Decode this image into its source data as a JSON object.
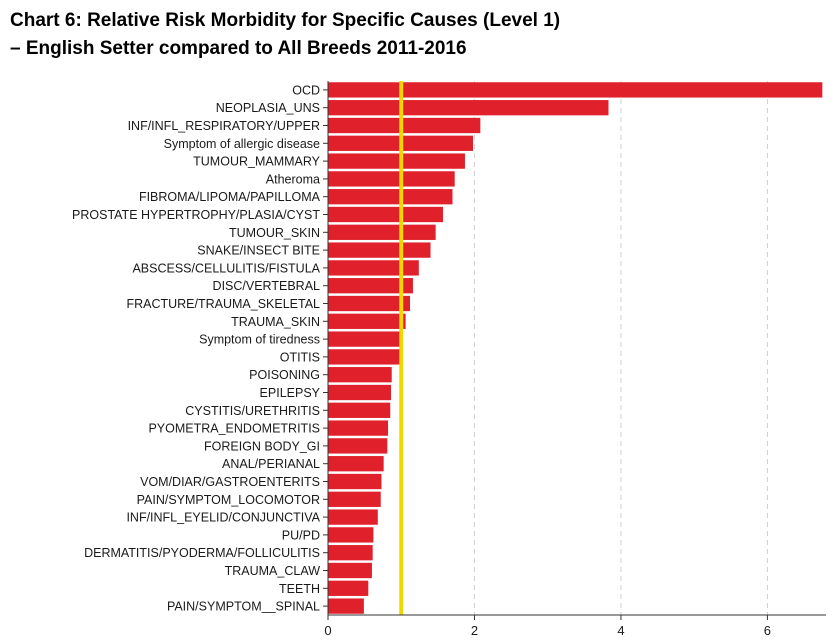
{
  "chart_data": {
    "type": "bar",
    "orientation": "horizontal",
    "title": "Chart 6: Relative Risk Morbidity for Specific Causes (Level 1)",
    "subtitle": "–  English Setter compared to All Breeds 2011-2016",
    "xlabel": "",
    "ylabel": "",
    "xlim": [
      0,
      6.8
    ],
    "xticks": [
      0,
      2,
      4,
      6
    ],
    "grid": "vertical dashed",
    "reference_line": 1,
    "categories": [
      "OCD",
      "NEOPLASIA_UNS",
      "INF/INFL_RESPIRATORY/UPPER",
      "Symptom of allergic disease",
      "TUMOUR_MAMMARY",
      "Atheroma",
      "FIBROMA/LIPOMA/PAPILLOMA",
      "PROSTATE HYPERTROPHY/PLASIA/CYST",
      "TUMOUR_SKIN",
      "SNAKE/INSECT BITE",
      "ABSCESS/CELLULITIS/FISTULA",
      "DISC/VERTEBRAL",
      "FRACTURE/TRAUMA_SKELETAL",
      "TRAUMA_SKIN",
      "Symptom of tiredness",
      "OTITIS",
      "POISONING",
      "EPILEPSY",
      "CYSTITIS/URETHRITIS",
      "PYOMETRA_ENDOMETRITIS",
      "FOREIGN BODY_GI",
      "ANAL/PERIANAL",
      "VOM/DIAR/GASTROENTERITS",
      "PAIN/SYMPTOM_LOCOMOTOR",
      "INF/INFL_EYELID/CONJUNCTIVA",
      "PU/PD",
      "DERMATITIS/PYODERMA/FOLLICULITIS",
      "TRAUMA_CLAW",
      "TEETH",
      "PAIN/SYMPTOM__SPINAL"
    ],
    "values": [
      6.75,
      3.83,
      2.08,
      1.98,
      1.87,
      1.73,
      1.7,
      1.57,
      1.47,
      1.4,
      1.24,
      1.16,
      1.12,
      1.06,
      0.99,
      0.98,
      0.87,
      0.86,
      0.85,
      0.82,
      0.81,
      0.76,
      0.73,
      0.72,
      0.68,
      0.62,
      0.61,
      0.6,
      0.55,
      0.49
    ],
    "colors": {
      "bar": "#e0212b",
      "reference_line": "#f2d600",
      "grid": "#cfcfcf",
      "axis": "#333333"
    }
  }
}
